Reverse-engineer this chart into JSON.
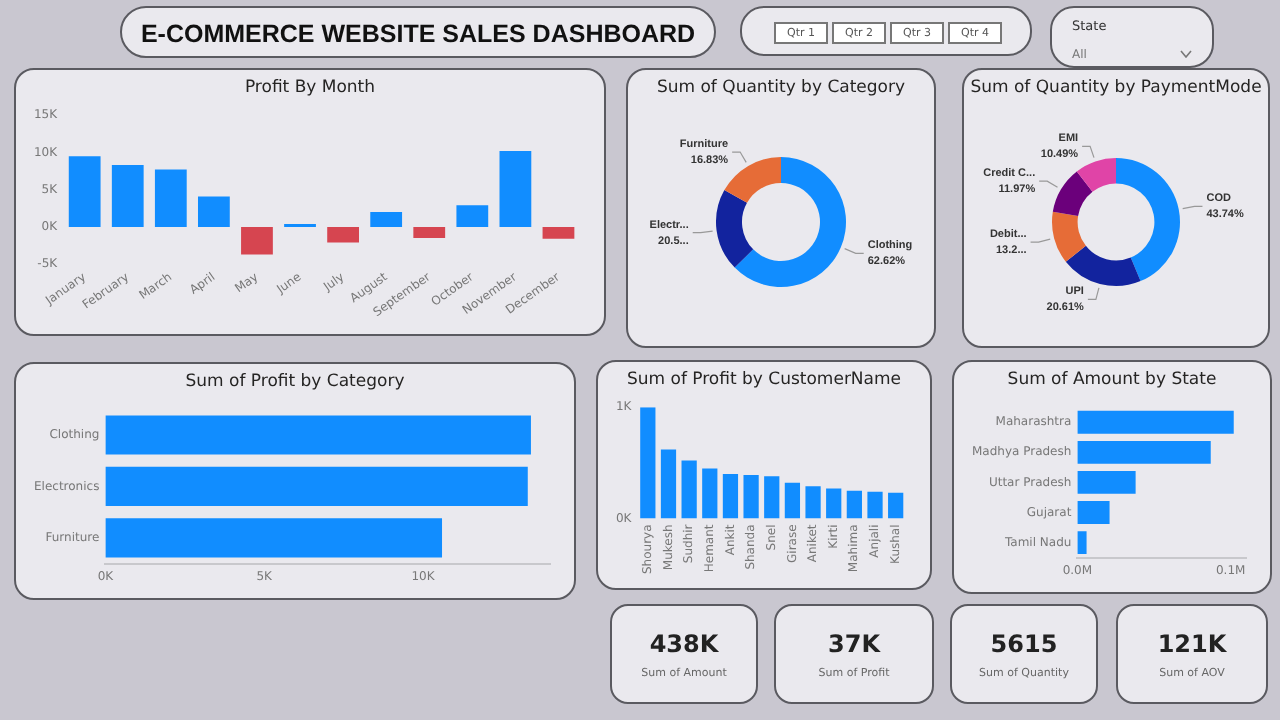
{
  "chart_data": [
    {
      "type": "other",
      "title": "E-COMMERCE WEBSITE SALES DASHBOARD",
      "annotations": [
        "Qtr 1",
        "Qtr 2",
        "Qtr 3",
        "Qtr 4",
        "State",
        "All"
      ]
    },
    {
      "type": "bar",
      "title": "Profit By Month",
      "categories": [
        "January",
        "February",
        "March",
        "April",
        "May",
        "June",
        "July",
        "August",
        "September",
        "October",
        "November",
        "December"
      ],
      "values": [
        9500,
        8300,
        7700,
        4100,
        -3700,
        400,
        -2100,
        2000,
        -1500,
        2900,
        10200,
        -1600
      ],
      "colors": [
        "#118dff",
        "#118dff",
        "#118dff",
        "#118dff",
        "#d64550",
        "#118dff",
        "#d64550",
        "#118dff",
        "#d64550",
        "#118dff",
        "#118dff",
        "#d64550"
      ],
      "ylim": [
        -5000,
        15000
      ],
      "yticks": [
        {
          "value": -5000,
          "label": "-5K"
        },
        {
          "value": 0,
          "label": "0K"
        },
        {
          "value": 5000,
          "label": "5K"
        },
        {
          "value": 10000,
          "label": "10K"
        },
        {
          "value": 15000,
          "label": "15K"
        }
      ],
      "legend": false
    },
    {
      "type": "donut",
      "title": "Sum of Quantity by Category",
      "categories": [
        "Clothing",
        "Electr...",
        "Furniture"
      ],
      "values": [
        62.62,
        20.55,
        16.83
      ],
      "value_labels": [
        "62.62%",
        "20.5...",
        "16.83%"
      ],
      "colors": [
        "#118dff",
        "#12239e",
        "#e66c37"
      ],
      "legend": false
    },
    {
      "type": "donut",
      "title": "Sum of Quantity by PaymentMode",
      "categories": [
        "COD",
        "UPI",
        "Debit...",
        "Credit C...",
        "EMI"
      ],
      "values": [
        43.74,
        20.61,
        13.19,
        11.97,
        10.49
      ],
      "value_labels": [
        "43.74%",
        "20.61%",
        "13.2...",
        "11.97%",
        "10.49%"
      ],
      "colors": [
        "#118dff",
        "#12239e",
        "#e66c37",
        "#6b007b",
        "#e044a7"
      ],
      "legend": false
    },
    {
      "type": "bar",
      "title": "Sum of Profit by Category",
      "orientation": "horizontal",
      "categories": [
        "Clothing",
        "Electronics",
        "Furniture"
      ],
      "values": [
        13400,
        13300,
        10600
      ],
      "color": "#118dff",
      "xlim": [
        0,
        14000
      ],
      "xticks": [
        {
          "value": 0,
          "label": "0K"
        },
        {
          "value": 5000,
          "label": "5K"
        },
        {
          "value": 10000,
          "label": "10K"
        }
      ],
      "legend": false
    },
    {
      "type": "bar",
      "title": "Sum of Profit by CustomerName",
      "categories": [
        "Shourya",
        "Mukesh",
        "Sudhir",
        "Hemant",
        "Ankit",
        "Shanda",
        "Snel",
        "Girase",
        "Aniket",
        "Kirti",
        "Mahima",
        "Anjali",
        "Kushal"
      ],
      "values": [
        1000,
        620,
        520,
        450,
        400,
        390,
        380,
        320,
        290,
        270,
        250,
        240,
        230
      ],
      "color": "#118dff",
      "ylim": [
        0,
        1000
      ],
      "yticks": [
        {
          "value": 0,
          "label": "0K"
        },
        {
          "value": 1000,
          "label": "1K"
        }
      ],
      "legend": false
    },
    {
      "type": "bar",
      "title": "Sum of Amount by State",
      "orientation": "horizontal",
      "categories": [
        "Maharashtra",
        "Madhya Pradesh",
        "Uttar Pradesh",
        "Gujarat",
        "Tamil Nadu"
      ],
      "values": [
        102000,
        87000,
        38000,
        21000,
        6000
      ],
      "color": "#118dff",
      "xlim": [
        0,
        110000
      ],
      "xticks": [
        {
          "value": 0,
          "label": "0.0M"
        },
        {
          "value": 100000,
          "label": "0.1M"
        }
      ],
      "legend": false
    },
    {
      "type": "other",
      "annotations": [
        "438K",
        "Sum of Amount",
        "37K",
        "Sum of Profit",
        "5615",
        "Sum of Quantity",
        "121K",
        "Sum of AOV"
      ]
    }
  ]
}
